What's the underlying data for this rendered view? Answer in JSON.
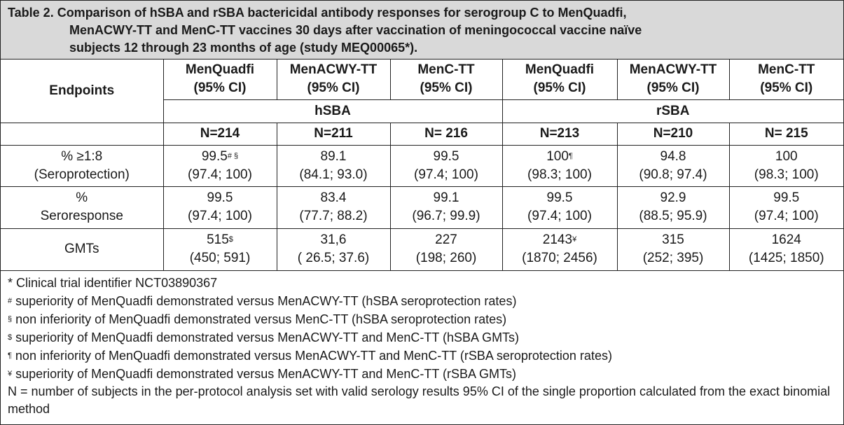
{
  "title": {
    "line1": "Table 2. Comparison of hSBA and rSBA bactericidal antibody responses for serogroup C to MenQuadfi,",
    "line2": "MenACWY-TT and MenC-TT vaccines 30 days after vaccination of meningococcal vaccine naïve",
    "line3": "subjects 12 through 23 months of age (study MEQ00065*)."
  },
  "header": {
    "endpoints": "Endpoints",
    "columns": [
      {
        "name": "MenQuadfi",
        "ci": "(95% CI)"
      },
      {
        "name": "MenACWY-TT",
        "ci": "(95% CI)"
      },
      {
        "name": "MenC-TT",
        "ci": "(95% CI)"
      },
      {
        "name": "MenQuadfi",
        "ci": "(95% CI)"
      },
      {
        "name": "MenACWY-TT",
        "ci": "(95% CI)"
      },
      {
        "name": "MenC-TT",
        "ci": "(95% CI)"
      }
    ],
    "groups": [
      "hSBA",
      "rSBA"
    ],
    "n_values": [
      "N=214",
      "N=211",
      "N= 216",
      "N=213",
      "N=210",
      "N= 215"
    ]
  },
  "rows": [
    {
      "label1": "% ≥1:8",
      "label2": "(Seroprotection)",
      "cells": [
        {
          "v": "99.5",
          "sup": "# §",
          "ci": "(97.4; 100)"
        },
        {
          "v": "89.1",
          "sup": "",
          "ci": "(84.1; 93.0)"
        },
        {
          "v": "99.5",
          "sup": "",
          "ci": "(97.4; 100)"
        },
        {
          "v": "100",
          "sup": "¶",
          "ci": "(98.3; 100)"
        },
        {
          "v": "94.8",
          "sup": "",
          "ci": "(90.8; 97.4)"
        },
        {
          "v": "100",
          "sup": "",
          "ci": "(98.3; 100)"
        }
      ]
    },
    {
      "label1": "%",
      "label2": "Seroresponse",
      "cells": [
        {
          "v": "99.5",
          "sup": "",
          "ci": "(97.4; 100)"
        },
        {
          "v": "83.4",
          "sup": "",
          "ci": "(77.7; 88.2)"
        },
        {
          "v": "99.1",
          "sup": "",
          "ci": "(96.7; 99.9)"
        },
        {
          "v": "99.5",
          "sup": "",
          "ci": "(97.4; 100)"
        },
        {
          "v": "92.9",
          "sup": "",
          "ci": "(88.5; 95.9)"
        },
        {
          "v": "99.5",
          "sup": "",
          "ci": "(97.4; 100)"
        }
      ]
    },
    {
      "label1": "GMTs",
      "label2": "",
      "cells": [
        {
          "v": "515",
          "sup": "$",
          "ci": "(450; 591)"
        },
        {
          "v": "31,6",
          "sup": "",
          "ci": "( 26.5; 37.6)"
        },
        {
          "v": "227",
          "sup": "",
          "ci": "(198; 260)"
        },
        {
          "v": "2143",
          "sup": "¥",
          "ci": "(1870; 2456)"
        },
        {
          "v": "315",
          "sup": "",
          "ci": "(252; 395)"
        },
        {
          "v": "1624",
          "sup": "",
          "ci": "(1425; 1850)"
        }
      ]
    }
  ],
  "footnotes": {
    "n1_mark": "*",
    "n1": " Clinical trial identifier NCT03890367",
    "n2_mark": "#",
    "n2": " superiority of MenQuadfi demonstrated versus MenACWY-TT (hSBA seroprotection rates)",
    "n3_mark": "§",
    "n3": " non inferiority of MenQuadfi demonstrated versus MenC-TT (hSBA seroprotection rates)",
    "n4_mark": "$",
    "n4": " superiority of MenQuadfi demonstrated versus MenACWY-TT and MenC-TT (hSBA GMTs)",
    "n5_mark": "¶",
    "n5": " non inferiority of MenQuadfi demonstrated versus MenACWY-TT and MenC-TT (rSBA seroprotection rates)",
    "n6_mark": "¥",
    "n6": " superiority of MenQuadfi demonstrated versus MenACWY-TT and MenC-TT (rSBA GMTs)",
    "n7": "N = number of subjects in the per-protocol analysis set with valid serology results 95% CI of the single proportion calculated from the exact binomial method"
  }
}
